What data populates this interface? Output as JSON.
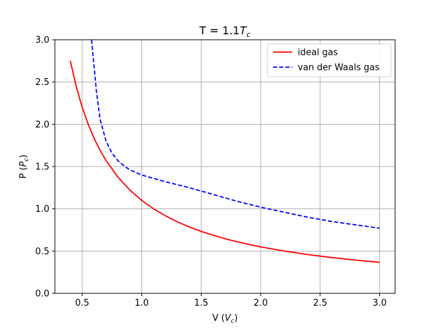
{
  "chart_data": {
    "type": "line",
    "title_prefix": "T = 1.1",
    "title_sym": "T",
    "title_sub": "c",
    "xlabel_prefix": "V (",
    "xlabel_sym": "V",
    "xlabel_sub": "c",
    "xlabel_suffix": ")",
    "ylabel_prefix": "P (",
    "ylabel_sym": "P",
    "ylabel_sub": "c",
    "ylabel_suffix": ")",
    "xlim": [
      0.27,
      3.13
    ],
    "ylim": [
      0.0,
      3.0
    ],
    "xticks": [
      0.5,
      1.0,
      1.5,
      2.0,
      2.5,
      3.0
    ],
    "xtick_labels": [
      "0.5",
      "1.0",
      "1.5",
      "2.0",
      "2.5",
      "3.0"
    ],
    "yticks": [
      0.0,
      0.5,
      1.0,
      1.5,
      2.0,
      2.5,
      3.0
    ],
    "ytick_labels": [
      "0.0",
      "0.5",
      "1.0",
      "1.5",
      "2.0",
      "2.5",
      "3.0"
    ],
    "grid": true,
    "legend_position": "top-right",
    "series": [
      {
        "name": "ideal gas",
        "color": "#ff0000",
        "style": "solid",
        "x": [
          0.4,
          0.45,
          0.5,
          0.55,
          0.6,
          0.65,
          0.7,
          0.8,
          0.9,
          1.0,
          1.1,
          1.2,
          1.3,
          1.4,
          1.5,
          1.6,
          1.7,
          1.8,
          1.9,
          2.0,
          2.2,
          2.4,
          2.6,
          2.8,
          3.0
        ],
        "y": [
          2.75,
          2.444,
          2.2,
          2.0,
          1.833,
          1.692,
          1.571,
          1.375,
          1.222,
          1.1,
          1.0,
          0.917,
          0.846,
          0.786,
          0.733,
          0.688,
          0.647,
          0.611,
          0.579,
          0.55,
          0.5,
          0.458,
          0.423,
          0.393,
          0.367
        ]
      },
      {
        "name": "van der Waals gas",
        "color": "#0000ff",
        "style": "dashed",
        "x": [
          0.578,
          0.6,
          0.62,
          0.65,
          0.7,
          0.75,
          0.8,
          0.85,
          0.9,
          1.0,
          1.1,
          1.2,
          1.4,
          1.6,
          1.8,
          2.0,
          2.2,
          2.4,
          2.6,
          2.8,
          3.0
        ],
        "y": [
          3.0,
          2.68,
          2.38,
          2.06,
          1.8,
          1.66,
          1.57,
          1.51,
          1.46,
          1.4,
          1.36,
          1.32,
          1.25,
          1.17,
          1.09,
          1.02,
          0.96,
          0.9,
          0.85,
          0.81,
          0.77
        ]
      }
    ]
  }
}
